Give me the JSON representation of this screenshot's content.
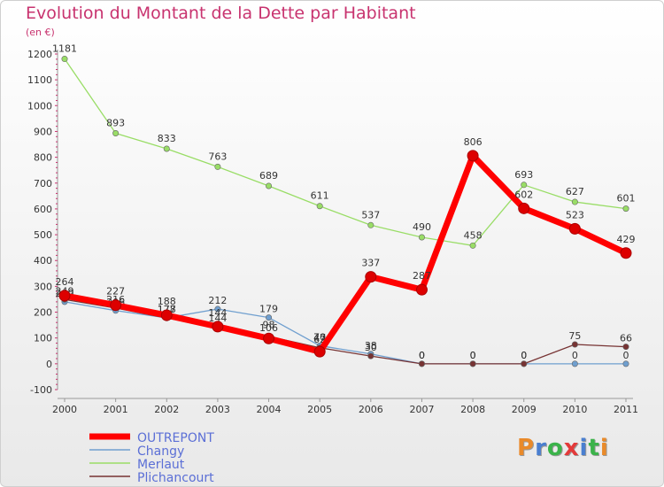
{
  "header": {
    "title": "Evolution du Montant de la Dette par Habitant",
    "unit": "(en €)"
  },
  "logo": {
    "text": "Proxiti"
  },
  "colors": {
    "OUTREPONT": "#ff0000",
    "Changy": "#6f9fcf",
    "Merlaut": "#99dd66",
    "Plichancourt": "#773333",
    "title": "#c8336f"
  },
  "chart_data": {
    "type": "line",
    "title": "Evolution du Montant de la Dette par Habitant",
    "ylabel": "(en €)",
    "xlabel": "",
    "x": [
      "2000",
      "2001",
      "2002",
      "2003",
      "2004",
      "2005",
      "2006",
      "2007",
      "2008",
      "2009",
      "2010",
      "2011"
    ],
    "ylim": [
      -100,
      1200
    ],
    "yticks": [
      -100,
      0,
      100,
      200,
      300,
      400,
      500,
      600,
      700,
      800,
      900,
      1000,
      1100,
      1200
    ],
    "grid": false,
    "legend": "bottom-left",
    "series": [
      {
        "name": "OUTREPONT",
        "values": [
          264,
          227,
          188,
          144,
          98,
          47,
          337,
          287,
          806,
          602,
          523,
          429
        ]
      },
      {
        "name": "Changy",
        "values": [
          240,
          206,
          178,
          212,
          179,
          70,
          38,
          0,
          0,
          0,
          0,
          0
        ]
      },
      {
        "name": "Merlaut",
        "values": [
          1181,
          893,
          833,
          763,
          689,
          611,
          537,
          490,
          458,
          693,
          627,
          601
        ]
      },
      {
        "name": "Plichancourt",
        "values": [
          249,
          216,
          177,
          144,
          106,
          62,
          30,
          0,
          0,
          0,
          75,
          66
        ]
      }
    ]
  }
}
